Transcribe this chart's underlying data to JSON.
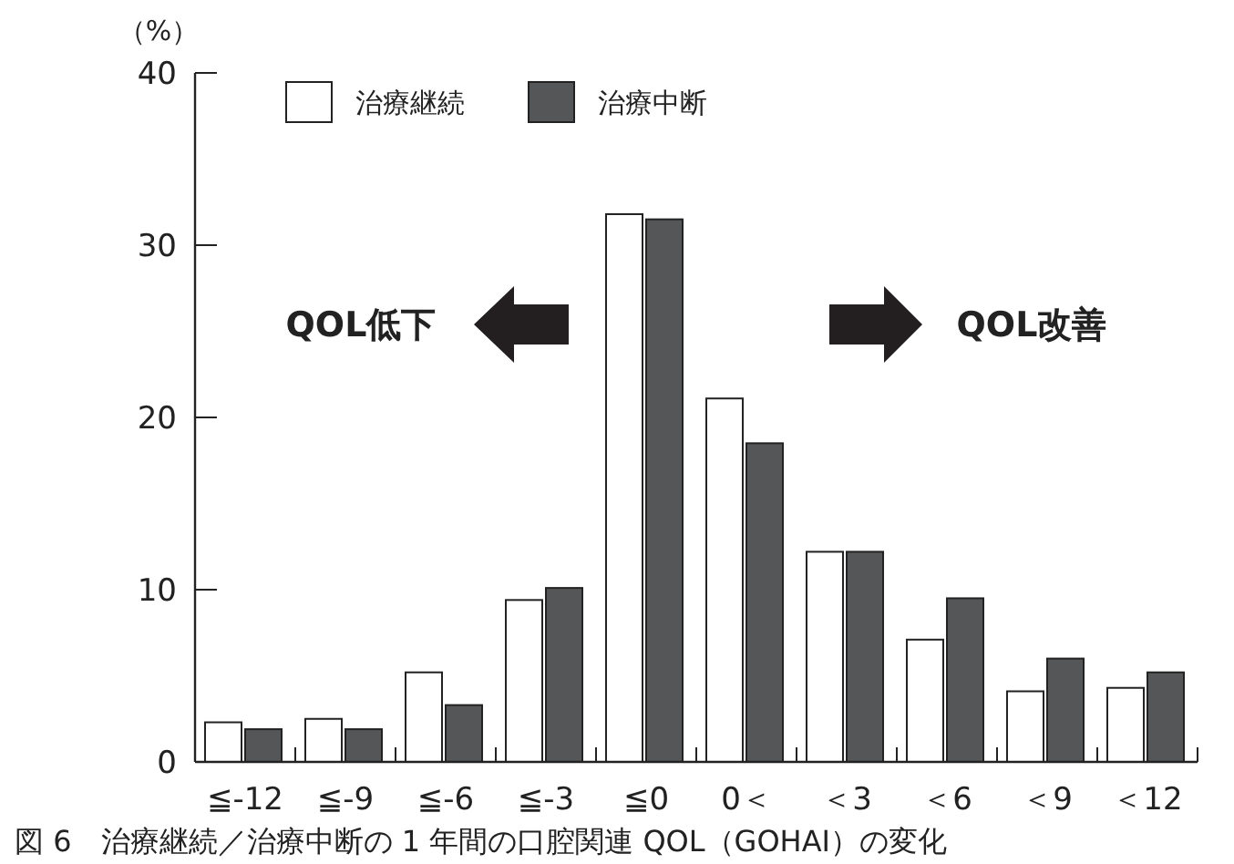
{
  "chart_data": {
    "type": "bar",
    "ylabel": "（%）",
    "categories": [
      "≦-12",
      "≦-9",
      "≦-6",
      "≦-3",
      "≦0",
      "0＜",
      "＜3",
      "＜6",
      "＜9",
      "＜12"
    ],
    "series": [
      {
        "name": "治療継続",
        "color": "#ffffff",
        "values": [
          2.3,
          2.5,
          5.2,
          9.4,
          31.8,
          21.1,
          12.2,
          7.1,
          4.1,
          4.3
        ]
      },
      {
        "name": "治療中断",
        "color": "#545658",
        "values": [
          1.9,
          1.9,
          3.3,
          10.1,
          31.5,
          18.5,
          12.2,
          9.5,
          6.0,
          5.2
        ]
      }
    ],
    "ylim": [
      0,
      40
    ],
    "yticks": [
      0,
      10,
      20,
      30,
      40
    ],
    "grid": false,
    "legend": "top left",
    "annotations": [
      "QOL低下",
      "QOL改善",
      "図 6　治療継続／治療中断の 1 年間の口腔関連 QOL（GOHAI）の変化"
    ]
  }
}
